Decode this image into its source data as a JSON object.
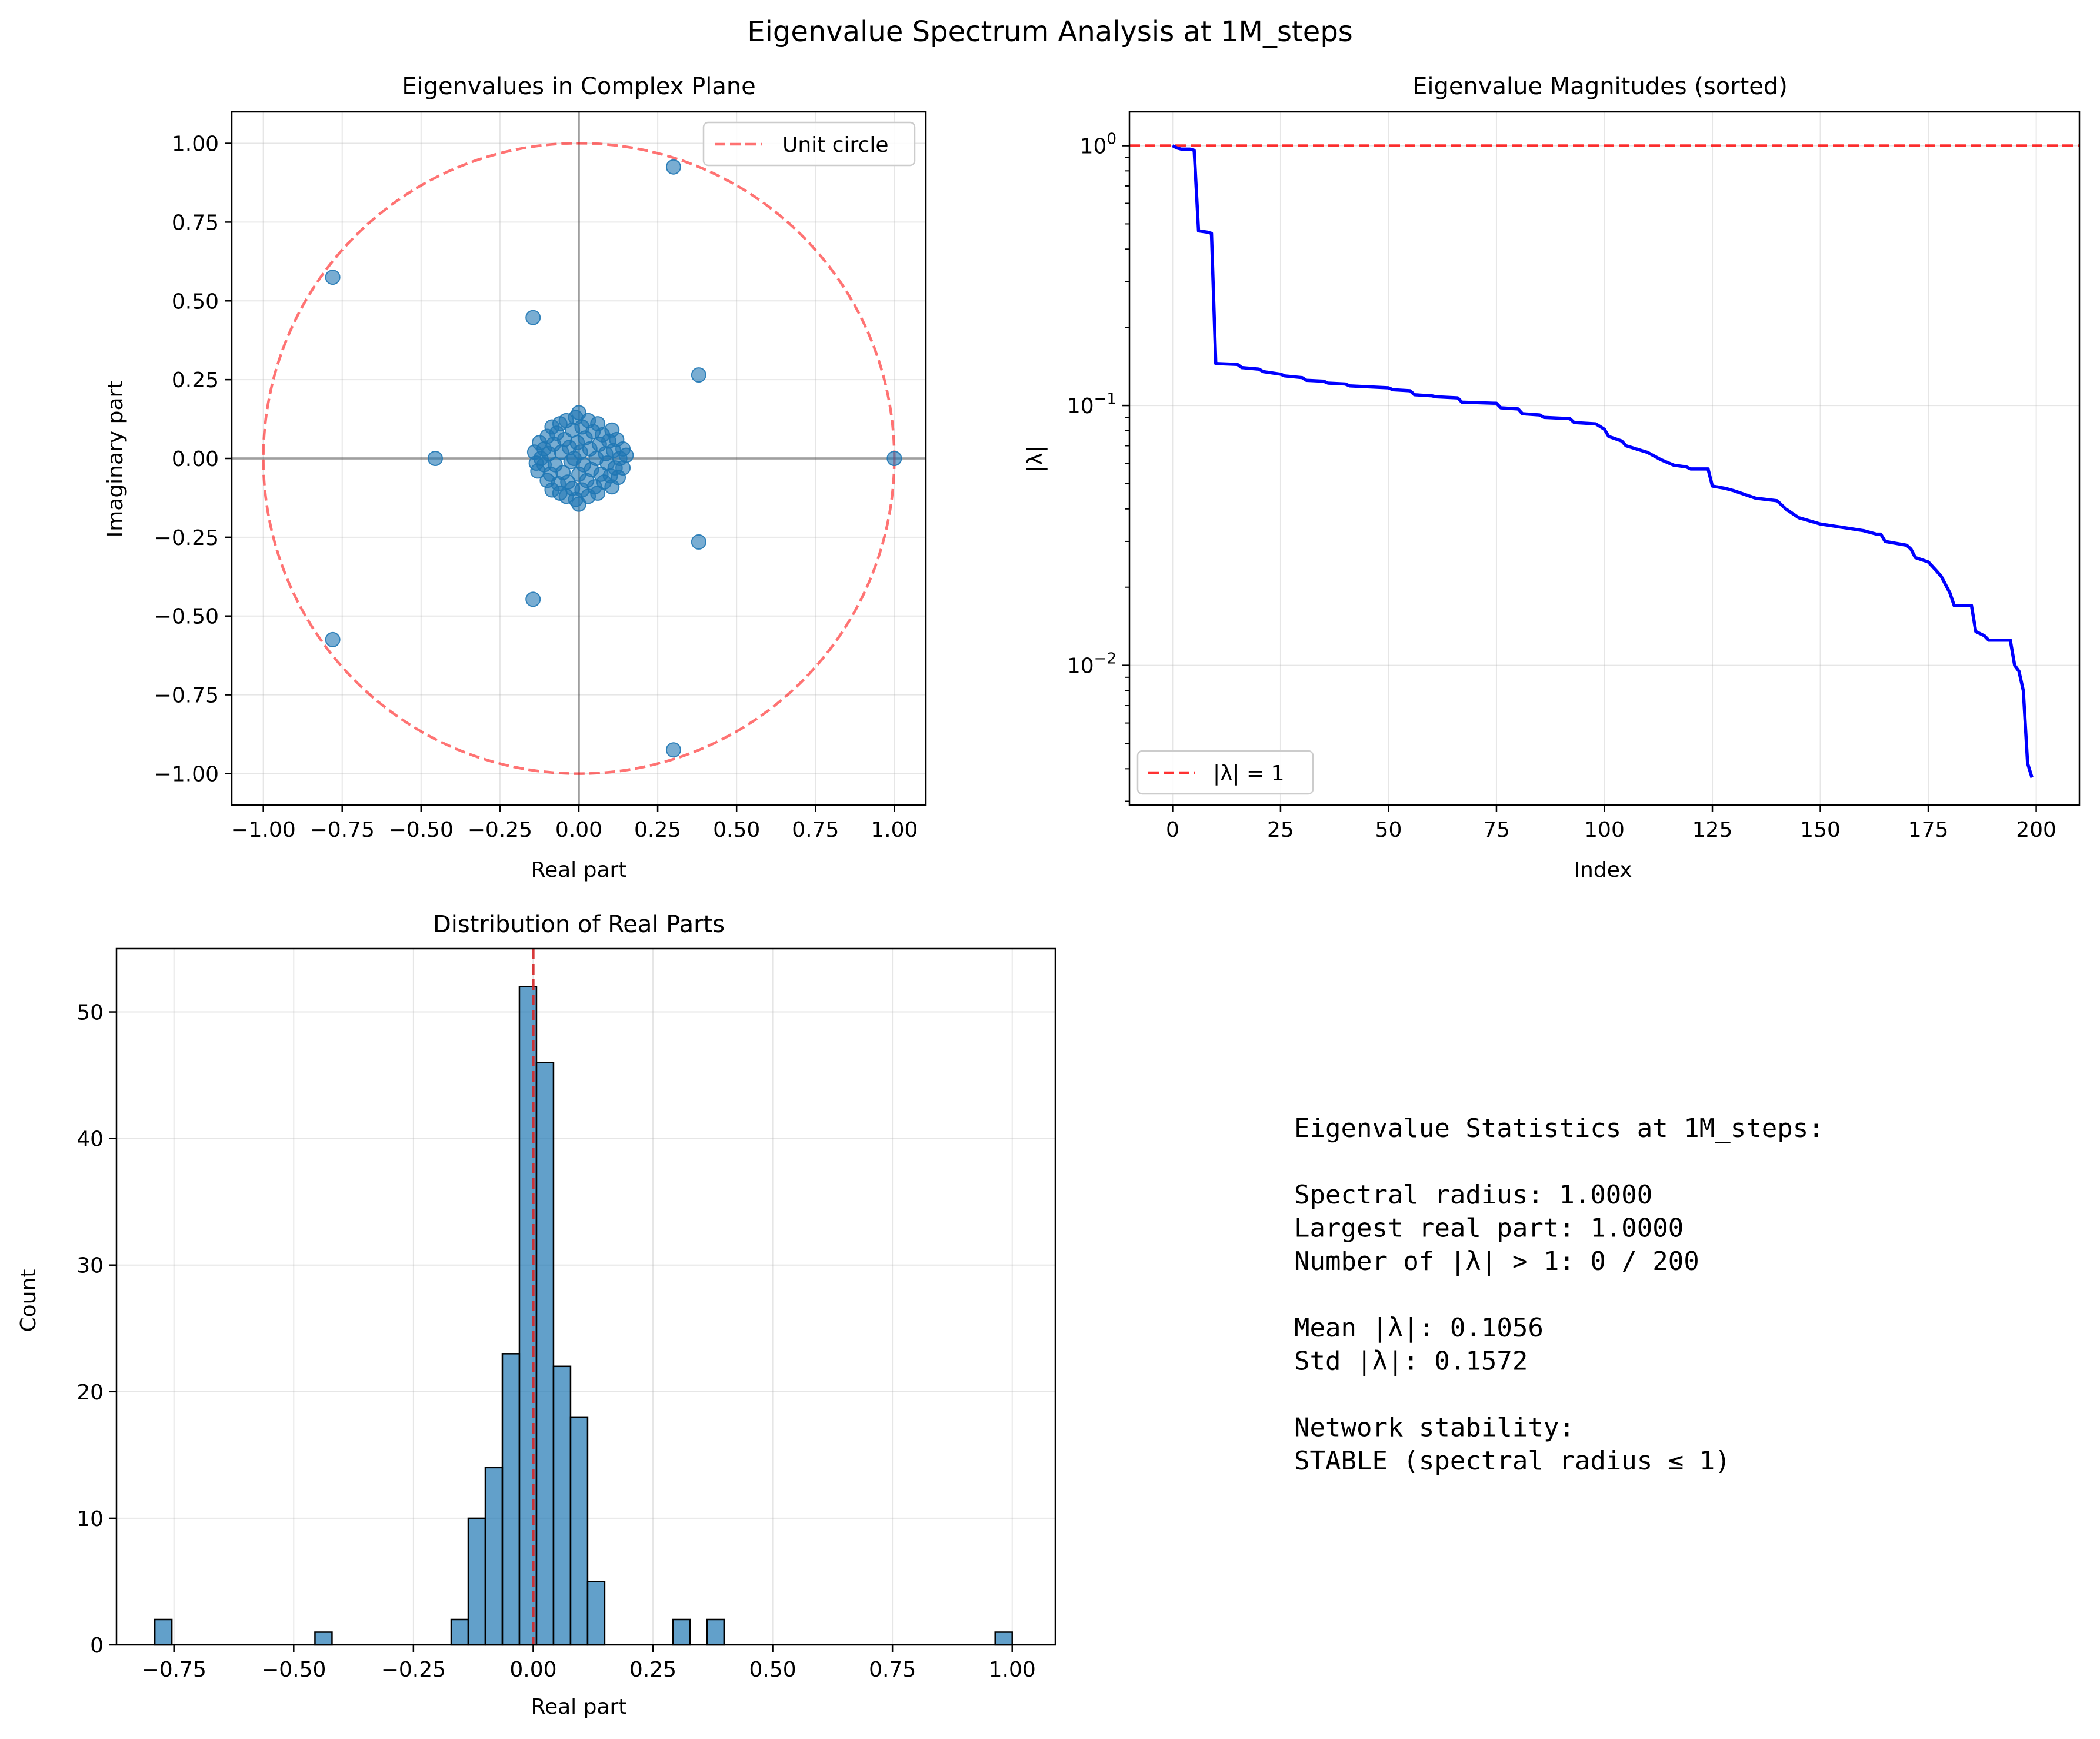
{
  "figure": {
    "title": "Eigenvalue Spectrum Analysis at 1M_steps"
  },
  "chart_data": [
    {
      "type": "scatter",
      "title": "Eigenvalues in Complex Plane",
      "xlabel": "Real part",
      "ylabel": "Imaginary part",
      "xlim": [
        -1.1,
        1.1
      ],
      "ylim": [
        -1.1,
        1.1
      ],
      "xticks": [
        "-1.00",
        "-0.75",
        "-0.50",
        "-0.25",
        "0.00",
        "0.25",
        "0.50",
        "0.75",
        "1.00"
      ],
      "yticks": [
        "-1.00",
        "-0.75",
        "-0.50",
        "-0.25",
        "0.00",
        "0.25",
        "0.50",
        "0.75",
        "1.00"
      ],
      "grid": true,
      "legend": {
        "position": "top-right",
        "entries": [
          "Unit circle"
        ]
      },
      "marker_color": "#1f77b4",
      "circle_color": "#ff0000",
      "outliers": [
        {
          "x": 0.3,
          "y": 0.925
        },
        {
          "x": 0.3,
          "y": -0.925
        },
        {
          "x": -0.78,
          "y": 0.575
        },
        {
          "x": -0.78,
          "y": -0.575
        },
        {
          "x": -0.145,
          "y": 0.447
        },
        {
          "x": -0.145,
          "y": -0.447
        },
        {
          "x": 0.38,
          "y": 0.265
        },
        {
          "x": 0.38,
          "y": -0.265
        },
        {
          "x": -0.455,
          "y": 0.0
        },
        {
          "x": 1.0,
          "y": 0.0
        }
      ],
      "cluster": [
        {
          "x": -0.125,
          "y": 0.05
        },
        {
          "x": -0.13,
          "y": -0.04
        },
        {
          "x": -0.12,
          "y": 0.0
        },
        {
          "x": -0.11,
          "y": 0.03
        },
        {
          "x": -0.11,
          "y": -0.02
        },
        {
          "x": -0.1,
          "y": 0.07
        },
        {
          "x": -0.1,
          "y": -0.07
        },
        {
          "x": -0.095,
          "y": 0.015
        },
        {
          "x": -0.09,
          "y": -0.05
        },
        {
          "x": -0.085,
          "y": 0.1
        },
        {
          "x": -0.085,
          "y": -0.1
        },
        {
          "x": -0.08,
          "y": 0.045
        },
        {
          "x": -0.075,
          "y": -0.02
        },
        {
          "x": -0.07,
          "y": 0.08
        },
        {
          "x": -0.065,
          "y": -0.08
        },
        {
          "x": -0.06,
          "y": 0.11
        },
        {
          "x": -0.06,
          "y": -0.11
        },
        {
          "x": -0.055,
          "y": 0.02
        },
        {
          "x": -0.05,
          "y": -0.045
        },
        {
          "x": -0.045,
          "y": 0.06
        },
        {
          "x": -0.04,
          "y": 0.12
        },
        {
          "x": -0.04,
          "y": -0.12
        },
        {
          "x": -0.035,
          "y": -0.075
        },
        {
          "x": -0.03,
          "y": 0.035
        },
        {
          "x": -0.025,
          "y": -0.01
        },
        {
          "x": -0.02,
          "y": 0.09
        },
        {
          "x": -0.02,
          "y": -0.095
        },
        {
          "x": -0.015,
          "y": 0.0
        },
        {
          "x": -0.01,
          "y": 0.13
        },
        {
          "x": -0.01,
          "y": -0.13
        },
        {
          "x": -0.005,
          "y": 0.05
        },
        {
          "x": 0.0,
          "y": -0.05
        },
        {
          "x": 0.0,
          "y": 0.145
        },
        {
          "x": 0.0,
          "y": -0.145
        },
        {
          "x": 0.005,
          "y": 0.02
        },
        {
          "x": 0.01,
          "y": 0.1
        },
        {
          "x": 0.01,
          "y": -0.1
        },
        {
          "x": 0.015,
          "y": -0.02
        },
        {
          "x": 0.02,
          "y": 0.065
        },
        {
          "x": 0.025,
          "y": -0.07
        },
        {
          "x": 0.03,
          "y": 0.12
        },
        {
          "x": 0.03,
          "y": -0.12
        },
        {
          "x": 0.035,
          "y": 0.03
        },
        {
          "x": 0.04,
          "y": -0.035
        },
        {
          "x": 0.045,
          "y": 0.085
        },
        {
          "x": 0.05,
          "y": -0.09
        },
        {
          "x": 0.055,
          "y": 0.0
        },
        {
          "x": 0.06,
          "y": 0.11
        },
        {
          "x": 0.06,
          "y": -0.11
        },
        {
          "x": 0.065,
          "y": 0.045
        },
        {
          "x": 0.07,
          "y": -0.05
        },
        {
          "x": 0.075,
          "y": 0.075
        },
        {
          "x": 0.08,
          "y": -0.075
        },
        {
          "x": 0.085,
          "y": 0.015
        },
        {
          "x": 0.09,
          "y": -0.015
        },
        {
          "x": 0.095,
          "y": 0.055
        },
        {
          "x": 0.1,
          "y": -0.055
        },
        {
          "x": 0.105,
          "y": 0.09
        },
        {
          "x": 0.105,
          "y": -0.09
        },
        {
          "x": 0.11,
          "y": 0.025
        },
        {
          "x": 0.115,
          "y": -0.03
        },
        {
          "x": 0.12,
          "y": 0.06
        },
        {
          "x": 0.125,
          "y": -0.06
        },
        {
          "x": 0.13,
          "y": 0.0
        },
        {
          "x": 0.14,
          "y": 0.03
        },
        {
          "x": 0.14,
          "y": -0.03
        },
        {
          "x": 0.15,
          "y": 0.01
        },
        {
          "x": -0.14,
          "y": 0.02
        },
        {
          "x": -0.135,
          "y": -0.015
        }
      ]
    },
    {
      "type": "line",
      "title": "Eigenvalue Magnitudes (sorted)",
      "xlabel": "Index",
      "ylabel": "|λ|",
      "yscale": "log",
      "xlim": [
        -10,
        210
      ],
      "ylim": [
        0.0029,
        1.35
      ],
      "xticks": [
        "0",
        "25",
        "50",
        "75",
        "100",
        "125",
        "150",
        "175",
        "200"
      ],
      "grid": true,
      "line_color": "#0000ff",
      "reference_line": {
        "y": 1,
        "color": "#ff0000"
      },
      "legend": {
        "position": "bottom-left",
        "entries": [
          "|λ| = 1"
        ]
      },
      "x": [
        0,
        1,
        2,
        4,
        5,
        6,
        8,
        9,
        10,
        15,
        16,
        20,
        21,
        25,
        26,
        30,
        31,
        35,
        36,
        40,
        41,
        50,
        51,
        55,
        56,
        60,
        61,
        66,
        67,
        75,
        76,
        80,
        81,
        85,
        86,
        92,
        93,
        98,
        99,
        100,
        101,
        104,
        105,
        110,
        113,
        116,
        119,
        120,
        121,
        124,
        125,
        128,
        130,
        135,
        140,
        142,
        145,
        150,
        155,
        160,
        163,
        164,
        165,
        170,
        171,
        172,
        175,
        177,
        178,
        180,
        181,
        185,
        186,
        188,
        189,
        190,
        194,
        195,
        196,
        197,
        198,
        199
      ],
      "y": [
        1.0,
        0.98,
        0.97,
        0.97,
        0.96,
        0.47,
        0.465,
        0.46,
        0.145,
        0.144,
        0.14,
        0.138,
        0.135,
        0.132,
        0.13,
        0.128,
        0.125,
        0.124,
        0.122,
        0.121,
        0.119,
        0.117,
        0.115,
        0.114,
        0.11,
        0.109,
        0.108,
        0.107,
        0.103,
        0.102,
        0.098,
        0.097,
        0.093,
        0.092,
        0.09,
        0.089,
        0.086,
        0.085,
        0.083,
        0.081,
        0.076,
        0.073,
        0.07,
        0.066,
        0.062,
        0.059,
        0.058,
        0.057,
        0.057,
        0.057,
        0.049,
        0.048,
        0.047,
        0.044,
        0.043,
        0.04,
        0.037,
        0.035,
        0.034,
        0.033,
        0.032,
        0.032,
        0.03,
        0.029,
        0.028,
        0.026,
        0.025,
        0.023,
        0.022,
        0.019,
        0.017,
        0.017,
        0.0135,
        0.013,
        0.0125,
        0.0125,
        0.0125,
        0.01,
        0.0095,
        0.008,
        0.0042,
        0.0037
      ]
    },
    {
      "type": "bar",
      "title": "Distribution of Real Parts",
      "xlabel": "Real part",
      "ylabel": "Count",
      "xlim": [
        -0.87,
        1.09
      ],
      "ylim": [
        0,
        55
      ],
      "xticks": [
        "-0.75",
        "-0.50",
        "-0.25",
        "0.00",
        "0.25",
        "0.50",
        "0.75",
        "1.00"
      ],
      "yticks": [
        "0",
        "10",
        "20",
        "30",
        "40",
        "50"
      ],
      "grid": true,
      "bar_color": "#1f77b4",
      "reference_line": {
        "x": 0,
        "color": "#d62728"
      },
      "bin_width": 0.0356,
      "bins": [
        {
          "x0": -0.79,
          "count": 2
        },
        {
          "x0": -0.4556,
          "count": 1
        },
        {
          "x0": -0.1712,
          "count": 2
        },
        {
          "x0": -0.1356,
          "count": 10
        },
        {
          "x0": -0.1,
          "count": 14
        },
        {
          "x0": -0.0644,
          "count": 23
        },
        {
          "x0": -0.0288,
          "count": 52
        },
        {
          "x0": 0.0068,
          "count": 46
        },
        {
          "x0": 0.0424,
          "count": 22
        },
        {
          "x0": 0.078,
          "count": 18
        },
        {
          "x0": 0.1136,
          "count": 5
        },
        {
          "x0": 0.2916,
          "count": 2
        },
        {
          "x0": 0.3628,
          "count": 2
        },
        {
          "x0": 0.9644,
          "count": 1
        }
      ]
    }
  ],
  "stats": {
    "lines": [
      "Eigenvalue Statistics at 1M_steps:",
      "",
      "Spectral radius: 1.0000",
      "Largest real part: 1.0000",
      "Number of |λ| > 1: 0 / 200",
      "",
      "Mean |λ|: 0.1056",
      "Std |λ|: 0.1572",
      "",
      "Network stability:",
      "STABLE (spectral radius ≤ 1)"
    ]
  }
}
